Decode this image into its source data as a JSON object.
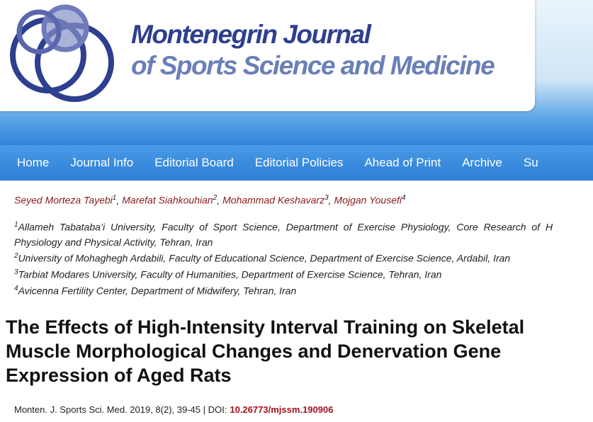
{
  "header": {
    "title_line1": "Montenegrin Journal",
    "title_line2": "of Sports Science and Medicine"
  },
  "nav": [
    "Home",
    "Journal Info",
    "Editorial Board",
    "Editorial Policies",
    "Ahead of Print",
    "Archive",
    "Su"
  ],
  "authors": {
    "delimiter": ",",
    "list": [
      {
        "name": "Seyed Morteza Tayebi",
        "sup": "1"
      },
      {
        "name": "Marefat Siahkouhian",
        "sup": "2"
      },
      {
        "name": "Mohammad Keshavarz",
        "sup": "3"
      },
      {
        "name": "Mojgan Yousefi",
        "sup": "4"
      }
    ]
  },
  "affiliations": [
    {
      "sup": "1",
      "lines": [
        "Allameh Tabataba’i University, Faculty of Sport Science, Department of Exercise Physiology, Core Research of H",
        "Physiology and Physical Activity, Tehran, Iran"
      ]
    },
    {
      "sup": "2",
      "lines": [
        "University of Mohaghegh Ardabili, Faculty of Educational Science, Department of Exercise Science, Ardabil, Iran"
      ]
    },
    {
      "sup": "3",
      "lines": [
        "Tarbiat Modares University, Faculty of Humanities, Department of Exercise Science, Tehran, Iran"
      ]
    },
    {
      "sup": "4",
      "lines": [
        "Avicenna Fertility Center, Department of Midwifery, Tehran, Iran"
      ]
    }
  ],
  "article": {
    "title": "The Effects of High-Intensity Interval Training on Skeletal Muscle Morphological Changes and Denervation Gene Expression of Aged Rats",
    "citation": "Monten. J. Sports Sci. Med. 2019, 8(2), 39-45 | DOI:",
    "doi": "10.26773/mjssm.190906"
  }
}
